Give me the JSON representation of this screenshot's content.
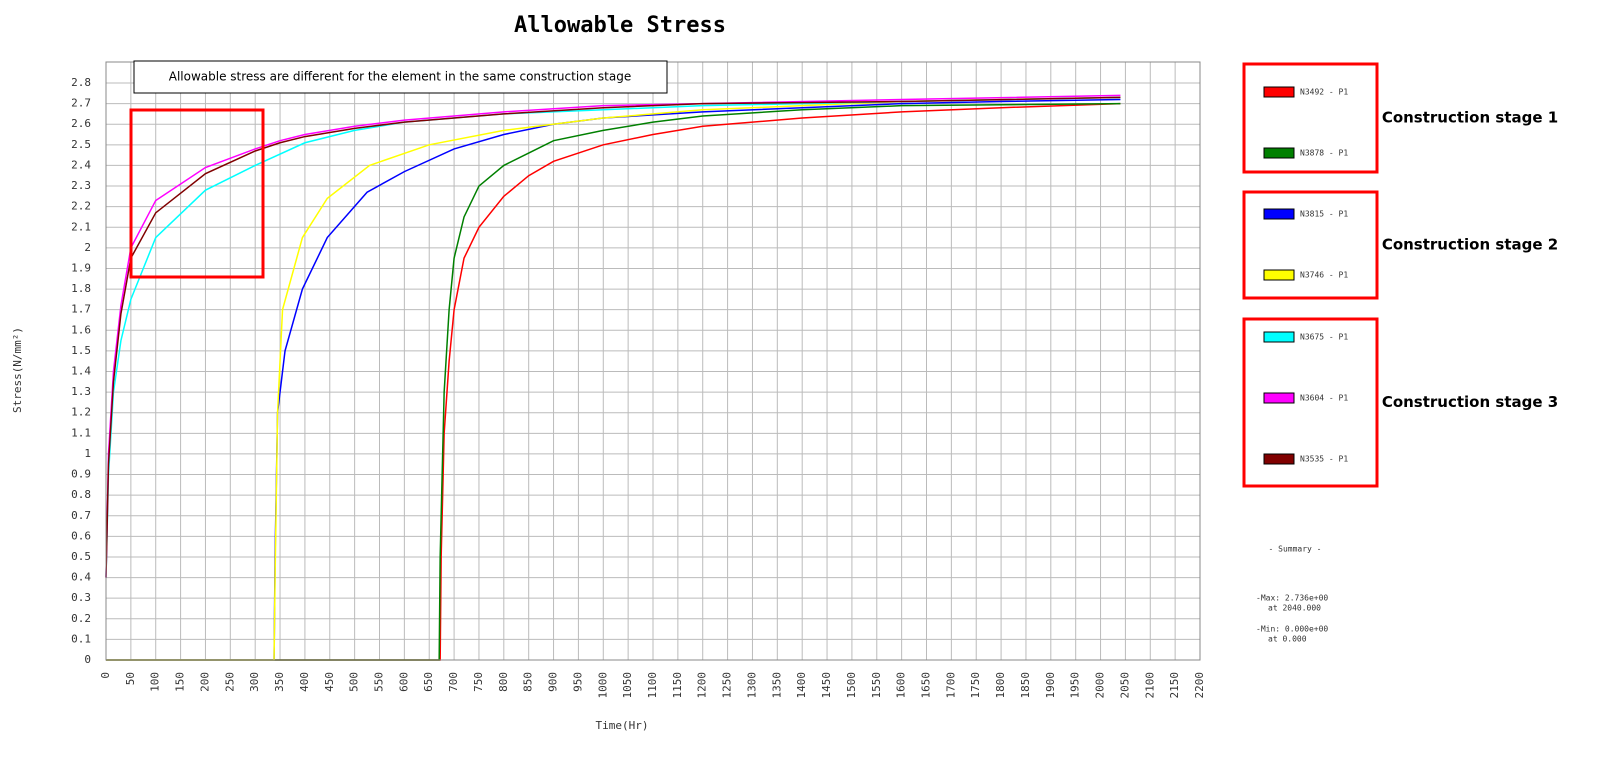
{
  "chart_data": {
    "type": "line",
    "title": "Allowable Stress",
    "annotation": "Allowable stress are different for the element in the same construction stage",
    "x_label": "Time(Hr)",
    "y_label": "Stress(N/mm²)",
    "xlim": [
      0,
      2200
    ],
    "ylim": [
      0,
      2.8
    ],
    "xticks": [
      0,
      50,
      100,
      150,
      200,
      250,
      300,
      350,
      400,
      450,
      500,
      550,
      600,
      650,
      700,
      750,
      800,
      850,
      900,
      950,
      1000,
      1050,
      1100,
      1150,
      1200,
      1250,
      1300,
      1350,
      1400,
      1450,
      1500,
      1550,
      1600,
      1650,
      1700,
      1750,
      1800,
      1850,
      1900,
      1950,
      2000,
      2050,
      2100,
      2150,
      2200
    ],
    "yticks": [
      0,
      0.1,
      0.2,
      0.3,
      0.4,
      0.5,
      0.6,
      0.7,
      0.8,
      0.9,
      1,
      1.1,
      1.2,
      1.3,
      1.4,
      1.5,
      1.6,
      1.7,
      1.8,
      1.9,
      2,
      2.1,
      2.2,
      2.3,
      2.4,
      2.5,
      2.6,
      2.7,
      2.8
    ],
    "grid": true,
    "stages": [
      "Construction stage 1",
      "Construction stage 2",
      "Construction stage 3"
    ],
    "series": [
      {
        "name": "N3492 - P1",
        "color": "#ff0000",
        "x": [
          0,
          672,
          674,
          680,
          690,
          700,
          720,
          750,
          800,
          850,
          900,
          1000,
          1100,
          1200,
          1400,
          1600,
          1800,
          2040
        ],
        "values": [
          0,
          0,
          0.5,
          1.1,
          1.45,
          1.7,
          1.95,
          2.1,
          2.25,
          2.35,
          2.42,
          2.5,
          2.55,
          2.59,
          2.63,
          2.66,
          2.68,
          2.7
        ]
      },
      {
        "name": "N3878 - P1",
        "color": "#008000",
        "x": [
          0,
          670,
          672,
          680,
          690,
          700,
          720,
          750,
          800,
          850,
          900,
          1000,
          1100,
          1200,
          1400,
          1600,
          2040
        ],
        "values": [
          0,
          0,
          0.5,
          1.3,
          1.7,
          1.95,
          2.15,
          2.3,
          2.4,
          2.46,
          2.52,
          2.57,
          2.61,
          2.64,
          2.67,
          2.69,
          2.7
        ]
      },
      {
        "name": "N3815 - P1",
        "color": "#0000ff",
        "x": [
          0,
          338,
          340,
          345,
          360,
          395,
          445,
          525,
          600,
          700,
          800,
          900,
          1000,
          1200,
          1400,
          1600,
          1800,
          2040
        ],
        "values": [
          0,
          0,
          0.5,
          1.2,
          1.5,
          1.8,
          2.05,
          2.27,
          2.37,
          2.48,
          2.55,
          2.6,
          2.63,
          2.66,
          2.68,
          2.7,
          2.71,
          2.72
        ]
      },
      {
        "name": "N3746 - P1",
        "color": "#ffff00",
        "x": [
          0,
          338,
          340,
          345,
          355,
          395,
          445,
          530,
          650,
          800,
          1000,
          1200,
          1400,
          1600,
          1800,
          2040
        ],
        "values": [
          0,
          0,
          0.4,
          1.2,
          1.7,
          2.05,
          2.24,
          2.4,
          2.5,
          2.57,
          2.63,
          2.67,
          2.69,
          2.71,
          2.72,
          2.73
        ]
      },
      {
        "name": "N3675 - P1",
        "color": "#00ffff",
        "x": [
          0,
          5,
          15,
          30,
          50,
          100,
          200,
          300,
          400,
          500,
          600,
          800,
          1000,
          1200,
          1600,
          2040
        ],
        "values": [
          0.4,
          0.9,
          1.3,
          1.55,
          1.75,
          2.05,
          2.28,
          2.4,
          2.51,
          2.57,
          2.61,
          2.65,
          2.67,
          2.69,
          2.71,
          2.73
        ]
      },
      {
        "name": "N3604 - P1",
        "color": "#ff00ff",
        "x": [
          0,
          5,
          15,
          30,
          50,
          100,
          200,
          300,
          350,
          400,
          500,
          600,
          800,
          1000,
          1200,
          1600,
          2040
        ],
        "values": [
          0.4,
          1,
          1.4,
          1.72,
          2,
          2.23,
          2.39,
          2.48,
          2.52,
          2.55,
          2.59,
          2.62,
          2.66,
          2.69,
          2.7,
          2.72,
          2.74
        ]
      },
      {
        "name": "N3535 - P1",
        "color": "#800000",
        "x": [
          0,
          5,
          15,
          30,
          50,
          100,
          200,
          300,
          350,
          400,
          500,
          600,
          800,
          1000,
          1200,
          1600,
          2040
        ],
        "values": [
          0.4,
          0.95,
          1.35,
          1.68,
          1.95,
          2.17,
          2.36,
          2.47,
          2.51,
          2.54,
          2.58,
          2.61,
          2.65,
          2.68,
          2.7,
          2.71,
          2.73
        ]
      }
    ],
    "summary": {
      "title": "- Summary -",
      "max": "-Max: 2.736e+00",
      "max_at": "at 2040.000",
      "min": "-Min: 0.000e+00",
      "min_at": "at  0.000"
    }
  }
}
